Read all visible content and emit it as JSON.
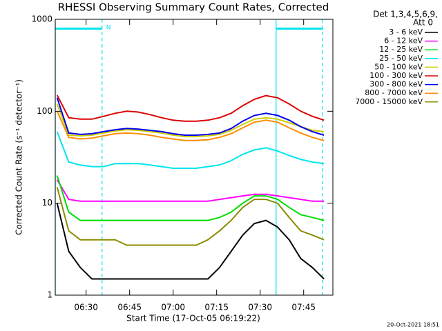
{
  "chart_data": {
    "type": "line",
    "title": "RHESSI Observing Summary Count Rates, Corrected",
    "y_label": "Corrected Count Rate (s⁻¹ detector⁻¹)",
    "x_label": "Start Time (17-Oct-05 06:19:22)",
    "legend_header": [
      "Det 1,3,4,5,6,9,",
      "Att 0"
    ],
    "footer": "20-Oct-2021 18:51",
    "log_y": true,
    "ylim": [
      1,
      1000
    ],
    "yticks": [
      1,
      10,
      100,
      1000
    ],
    "xlim": [
      "06:19:22",
      "07:55:04"
    ],
    "xticks": [
      "06:30",
      "06:45",
      "07:00",
      "07:15",
      "07:30",
      "07:45"
    ],
    "night": {
      "label": "N",
      "color": "#00e5ee",
      "intervals": [
        [
          "06:19:22",
          "06:35:30"
        ],
        [
          "07:35:30",
          "07:51:30"
        ]
      ]
    },
    "x": [
      "06:20",
      "06:24",
      "06:28",
      "06:32",
      "06:36",
      "06:40",
      "06:44",
      "06:48",
      "06:52",
      "06:56",
      "07:00",
      "07:04",
      "07:08",
      "07:12",
      "07:16",
      "07:20",
      "07:24",
      "07:28",
      "07:32",
      "07:36",
      "07:40",
      "07:44",
      "07:48",
      "07:52"
    ],
    "series": [
      {
        "name": "3 - 6 keV",
        "color": "#000000",
        "values": [
          10,
          3,
          2,
          1.5,
          1.5,
          1.5,
          1.5,
          1.5,
          1.5,
          1.5,
          1.5,
          1.5,
          1.5,
          1.5,
          2,
          3,
          4.5,
          6,
          6.5,
          5.5,
          4,
          2.5,
          2,
          1.5
        ]
      },
      {
        "name": "6 - 12 keV",
        "color": "#ff00ff",
        "values": [
          18,
          11,
          10.5,
          10.5,
          10.5,
          10.5,
          10.5,
          10.5,
          10.5,
          10.5,
          10.5,
          10.5,
          10.5,
          10.5,
          11,
          11.5,
          12,
          12.5,
          12.5,
          12,
          11.5,
          11,
          10.5,
          10.5
        ]
      },
      {
        "name": "12 - 25 keV",
        "color": "#00dd00",
        "values": [
          20,
          8,
          6.5,
          6.5,
          6.5,
          6.5,
          6.5,
          6.5,
          6.5,
          6.5,
          6.5,
          6.5,
          6.5,
          6.5,
          7,
          8,
          10,
          12,
          12,
          11,
          9,
          7.5,
          7,
          6.5
        ]
      },
      {
        "name": "25 - 50 keV",
        "color": "#00e5ee",
        "values": [
          60,
          28,
          26,
          25,
          25,
          27,
          27,
          27,
          26,
          25,
          24,
          24,
          24,
          25,
          26,
          29,
          34,
          38,
          40,
          37,
          33,
          30,
          28,
          27
        ]
      },
      {
        "name": "50 - 100 keV",
        "color": "#cccc00",
        "values": [
          120,
          55,
          54,
          55,
          58,
          61,
          63,
          62,
          60,
          58,
          55,
          53,
          53,
          54,
          56,
          62,
          72,
          82,
          85,
          82,
          75,
          68,
          62,
          60
        ]
      },
      {
        "name": "100 - 300 keV",
        "color": "#dd0000",
        "values": [
          150,
          85,
          82,
          82,
          88,
          95,
          100,
          98,
          92,
          85,
          80,
          78,
          78,
          80,
          85,
          95,
          115,
          135,
          148,
          140,
          120,
          100,
          88,
          80
        ]
      },
      {
        "name": "300 - 800 keV",
        "color": "#0000ee",
        "values": [
          140,
          58,
          56,
          57,
          60,
          63,
          65,
          64,
          62,
          60,
          57,
          55,
          55,
          56,
          58,
          65,
          78,
          90,
          95,
          90,
          80,
          68,
          60,
          55
        ]
      },
      {
        "name": "800 - 7000 keV",
        "color": "#ff8c00",
        "values": [
          100,
          52,
          50,
          51,
          54,
          57,
          58,
          57,
          55,
          52,
          50,
          48,
          48,
          49,
          52,
          57,
          66,
          76,
          80,
          76,
          66,
          58,
          52,
          48
        ]
      },
      {
        "name": "7000 - 15000 keV",
        "color": "#8b8b00",
        "values": [
          15,
          5,
          4,
          4,
          4,
          4,
          3.5,
          3.5,
          3.5,
          3.5,
          3.5,
          3.5,
          3.5,
          4,
          5,
          6.5,
          9,
          11,
          11,
          10,
          7,
          5,
          4.5,
          4
        ]
      }
    ]
  }
}
